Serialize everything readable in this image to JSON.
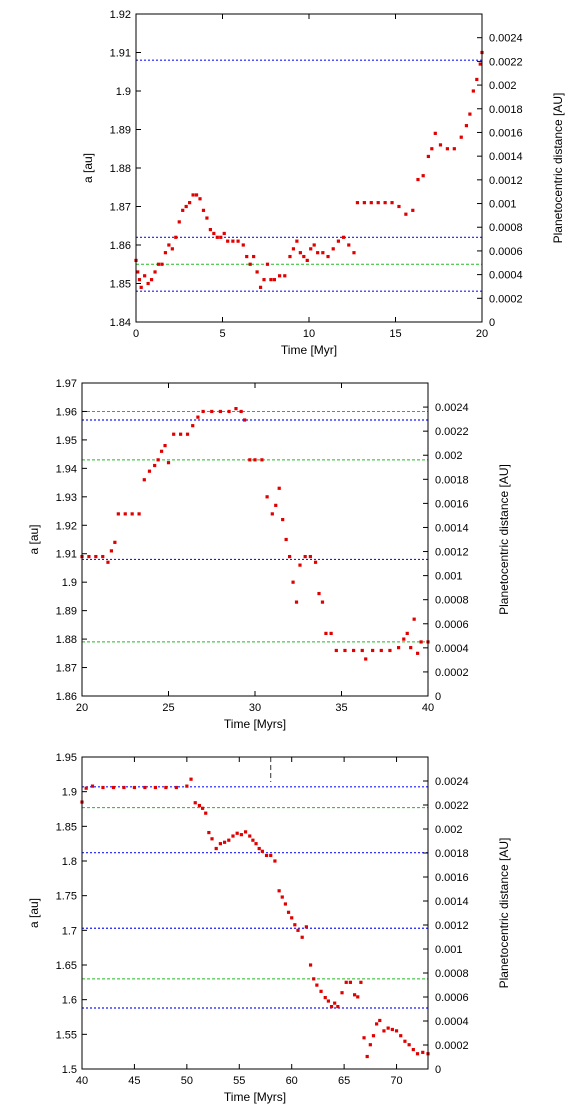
{
  "chart_data": [
    {
      "type": "scatter",
      "xlabel": "Time [Myr]",
      "ylabel": "a [au]",
      "y2label": "Planetocentric distance [AU]",
      "xlim": [
        0,
        20
      ],
      "ylim": [
        1.84,
        1.92
      ],
      "y2lim": [
        0,
        0.0026
      ],
      "xticks": [
        "0",
        "5",
        "10",
        "15",
        "20"
      ],
      "yticks": [
        "1.84",
        "1.85",
        "1.86",
        "1.87",
        "1.88",
        "1.89",
        "1.9",
        "1.91",
        "1.92"
      ],
      "y2ticks": [
        "0",
        "0.0002",
        "0.0004",
        "0.0006",
        "0.0008",
        "0.001",
        "0.0012",
        "0.0014",
        "0.0016",
        "0.0018",
        "0.002",
        "0.0022",
        "0.0024"
      ],
      "hlines_blue": [
        1.908,
        1.862,
        1.848
      ],
      "hlines_green": [
        1.855
      ],
      "points": [
        [
          0.0,
          1.856
        ],
        [
          0.1,
          1.853
        ],
        [
          0.2,
          1.851
        ],
        [
          0.3,
          1.849
        ],
        [
          0.5,
          1.852
        ],
        [
          0.7,
          1.85
        ],
        [
          0.9,
          1.851
        ],
        [
          1.1,
          1.853
        ],
        [
          1.3,
          1.855
        ],
        [
          1.5,
          1.855
        ],
        [
          1.7,
          1.858
        ],
        [
          1.9,
          1.86
        ],
        [
          2.1,
          1.859
        ],
        [
          2.3,
          1.862
        ],
        [
          2.5,
          1.866
        ],
        [
          2.7,
          1.869
        ],
        [
          2.9,
          1.87
        ],
        [
          3.1,
          1.871
        ],
        [
          3.3,
          1.873
        ],
        [
          3.5,
          1.873
        ],
        [
          3.7,
          1.872
        ],
        [
          3.9,
          1.869
        ],
        [
          4.1,
          1.867
        ],
        [
          4.3,
          1.864
        ],
        [
          4.5,
          1.863
        ],
        [
          4.7,
          1.862
        ],
        [
          4.9,
          1.862
        ],
        [
          5.1,
          1.863
        ],
        [
          5.3,
          1.861
        ],
        [
          5.6,
          1.861
        ],
        [
          5.9,
          1.861
        ],
        [
          6.2,
          1.86
        ],
        [
          6.4,
          1.857
        ],
        [
          6.6,
          1.855
        ],
        [
          6.8,
          1.857
        ],
        [
          7.0,
          1.853
        ],
        [
          7.2,
          1.849
        ],
        [
          7.4,
          1.851
        ],
        [
          7.6,
          1.855
        ],
        [
          7.8,
          1.851
        ],
        [
          8.0,
          1.851
        ],
        [
          8.3,
          1.852
        ],
        [
          8.6,
          1.852
        ],
        [
          8.9,
          1.857
        ],
        [
          9.1,
          1.859
        ],
        [
          9.3,
          1.861
        ],
        [
          9.5,
          1.858
        ],
        [
          9.7,
          1.857
        ],
        [
          9.9,
          1.856
        ],
        [
          10.1,
          1.859
        ],
        [
          10.3,
          1.86
        ],
        [
          10.5,
          1.858
        ],
        [
          10.8,
          1.858
        ],
        [
          11.1,
          1.857
        ],
        [
          11.4,
          1.859
        ],
        [
          11.7,
          1.861
        ],
        [
          12.0,
          1.862
        ],
        [
          12.3,
          1.86
        ],
        [
          12.6,
          1.858
        ],
        [
          12.8,
          1.871
        ],
        [
          13.2,
          1.871
        ],
        [
          13.6,
          1.871
        ],
        [
          14.0,
          1.871
        ],
        [
          14.4,
          1.871
        ],
        [
          14.8,
          1.871
        ],
        [
          15.2,
          1.87
        ],
        [
          15.6,
          1.868
        ],
        [
          16.0,
          1.869
        ],
        [
          16.3,
          1.877
        ],
        [
          16.6,
          1.878
        ],
        [
          16.9,
          1.883
        ],
        [
          17.1,
          1.885
        ],
        [
          17.3,
          1.889
        ],
        [
          17.6,
          1.886
        ],
        [
          18.0,
          1.885
        ],
        [
          18.4,
          1.885
        ],
        [
          18.8,
          1.888
        ],
        [
          19.1,
          1.891
        ],
        [
          19.3,
          1.894
        ],
        [
          19.5,
          1.9
        ],
        [
          19.7,
          1.903
        ],
        [
          19.9,
          1.907
        ],
        [
          20.0,
          1.91
        ]
      ]
    },
    {
      "type": "scatter",
      "xlabel": "Time [Myrs]",
      "ylabel": "a [au]",
      "y2label": "Planetocentric distance [AU]",
      "xlim": [
        20,
        40
      ],
      "ylim": [
        1.86,
        1.97
      ],
      "y2lim": [
        0,
        0.0026
      ],
      "xticks": [
        "20",
        "25",
        "30",
        "35",
        "40"
      ],
      "yticks": [
        "1.86",
        "1.87",
        "1.88",
        "1.89",
        "1.9",
        "1.91",
        "1.92",
        "1.93",
        "1.94",
        "1.95",
        "1.96",
        "1.97"
      ],
      "y2ticks": [
        "0",
        "0.0002",
        "0.0004",
        "0.0006",
        "0.0008",
        "0.001",
        "0.0012",
        "0.0014",
        "0.0016",
        "0.0018",
        "0.002",
        "0.0022",
        "0.0024"
      ],
      "hlines_blue": [
        1.957,
        1.908
      ],
      "hlines_green": [
        1.96,
        1.943,
        1.879
      ],
      "points": [
        [
          20.0,
          1.909
        ],
        [
          20.4,
          1.909
        ],
        [
          20.8,
          1.909
        ],
        [
          21.2,
          1.909
        ],
        [
          21.5,
          1.907
        ],
        [
          21.7,
          1.911
        ],
        [
          21.9,
          1.914
        ],
        [
          22.1,
          1.924
        ],
        [
          22.5,
          1.924
        ],
        [
          22.9,
          1.924
        ],
        [
          23.3,
          1.924
        ],
        [
          23.6,
          1.936
        ],
        [
          23.9,
          1.939
        ],
        [
          24.2,
          1.941
        ],
        [
          24.4,
          1.943
        ],
        [
          24.6,
          1.946
        ],
        [
          24.8,
          1.948
        ],
        [
          25.0,
          1.942
        ],
        [
          25.3,
          1.952
        ],
        [
          25.7,
          1.952
        ],
        [
          26.1,
          1.952
        ],
        [
          26.4,
          1.955
        ],
        [
          26.7,
          1.958
        ],
        [
          27.0,
          1.96
        ],
        [
          27.5,
          1.96
        ],
        [
          28.0,
          1.96
        ],
        [
          28.5,
          1.96
        ],
        [
          28.9,
          1.961
        ],
        [
          29.2,
          1.96
        ],
        [
          29.4,
          1.957
        ],
        [
          29.7,
          1.943
        ],
        [
          30.0,
          1.943
        ],
        [
          30.4,
          1.943
        ],
        [
          30.7,
          1.93
        ],
        [
          31.0,
          1.924
        ],
        [
          31.2,
          1.927
        ],
        [
          31.4,
          1.933
        ],
        [
          31.6,
          1.922
        ],
        [
          31.8,
          1.915
        ],
        [
          32.0,
          1.909
        ],
        [
          32.2,
          1.9
        ],
        [
          32.4,
          1.893
        ],
        [
          32.6,
          1.906
        ],
        [
          32.9,
          1.909
        ],
        [
          33.2,
          1.909
        ],
        [
          33.5,
          1.907
        ],
        [
          33.7,
          1.896
        ],
        [
          33.9,
          1.893
        ],
        [
          34.1,
          1.882
        ],
        [
          34.4,
          1.882
        ],
        [
          34.7,
          1.876
        ],
        [
          35.2,
          1.876
        ],
        [
          35.7,
          1.876
        ],
        [
          36.2,
          1.876
        ],
        [
          36.4,
          1.873
        ],
        [
          36.8,
          1.876
        ],
        [
          37.3,
          1.876
        ],
        [
          37.8,
          1.876
        ],
        [
          38.3,
          1.877
        ],
        [
          38.6,
          1.88
        ],
        [
          38.8,
          1.882
        ],
        [
          39.0,
          1.877
        ],
        [
          39.2,
          1.887
        ],
        [
          39.4,
          1.875
        ],
        [
          39.6,
          1.879
        ],
        [
          40.0,
          1.879
        ]
      ]
    },
    {
      "type": "scatter",
      "xlabel": "Time [Myrs]",
      "ylabel": "a [au]",
      "y2label": "Planetocentric distance [AU]",
      "xlim": [
        40,
        73
      ],
      "ylim": [
        1.5,
        1.95
      ],
      "y2lim": [
        0,
        0.0026
      ],
      "xticks": [
        "40",
        "45",
        "50",
        "55",
        "60",
        "65",
        "70"
      ],
      "yticks": [
        "1.5",
        "1.55",
        "1.6",
        "1.65",
        "1.7",
        "1.75",
        "1.8",
        "1.85",
        "1.9",
        "1.95"
      ],
      "y2ticks": [
        "0",
        "0.0002",
        "0.0004",
        "0.0006",
        "0.0008",
        "0.001",
        "0.0012",
        "0.0014",
        "0.0016",
        "0.0018",
        "0.002",
        "0.0022",
        "0.0024"
      ],
      "hlines_blue": [
        1.907,
        1.812,
        1.703,
        1.588
      ],
      "hlines_green": [
        1.877,
        1.63
      ],
      "vline_dashed": 58,
      "points": [
        [
          40.0,
          1.885
        ],
        [
          40.4,
          1.905
        ],
        [
          41.0,
          1.908
        ],
        [
          42.0,
          1.906
        ],
        [
          43.0,
          1.906
        ],
        [
          44.0,
          1.906
        ],
        [
          45.0,
          1.906
        ],
        [
          46.0,
          1.906
        ],
        [
          47.0,
          1.906
        ],
        [
          48.0,
          1.906
        ],
        [
          49.0,
          1.906
        ],
        [
          50.0,
          1.908
        ],
        [
          50.4,
          1.918
        ],
        [
          50.8,
          1.884
        ],
        [
          51.2,
          1.88
        ],
        [
          51.5,
          1.876
        ],
        [
          51.8,
          1.869
        ],
        [
          52.1,
          1.841
        ],
        [
          52.4,
          1.832
        ],
        [
          52.8,
          1.818
        ],
        [
          53.2,
          1.825
        ],
        [
          53.6,
          1.827
        ],
        [
          54.0,
          1.83
        ],
        [
          54.4,
          1.836
        ],
        [
          54.8,
          1.84
        ],
        [
          55.2,
          1.838
        ],
        [
          55.6,
          1.842
        ],
        [
          56.0,
          1.836
        ],
        [
          56.3,
          1.83
        ],
        [
          56.6,
          1.825
        ],
        [
          56.9,
          1.818
        ],
        [
          57.2,
          1.814
        ],
        [
          57.6,
          1.808
        ],
        [
          58.0,
          1.808
        ],
        [
          58.4,
          1.8
        ],
        [
          58.8,
          1.757
        ],
        [
          59.1,
          1.748
        ],
        [
          59.4,
          1.738
        ],
        [
          59.7,
          1.726
        ],
        [
          60.0,
          1.718
        ],
        [
          60.3,
          1.708
        ],
        [
          60.6,
          1.7
        ],
        [
          61.0,
          1.69
        ],
        [
          61.4,
          1.705
        ],
        [
          61.8,
          1.65
        ],
        [
          62.1,
          1.63
        ],
        [
          62.4,
          1.621
        ],
        [
          62.8,
          1.612
        ],
        [
          63.2,
          1.603
        ],
        [
          63.5,
          1.598
        ],
        [
          63.8,
          1.59
        ],
        [
          64.1,
          1.595
        ],
        [
          64.4,
          1.59
        ],
        [
          64.8,
          1.61
        ],
        [
          65.2,
          1.625
        ],
        [
          65.6,
          1.625
        ],
        [
          66.0,
          1.607
        ],
        [
          66.3,
          1.604
        ],
        [
          66.6,
          1.625
        ],
        [
          66.9,
          1.545
        ],
        [
          67.2,
          1.518
        ],
        [
          67.5,
          1.535
        ],
        [
          67.8,
          1.548
        ],
        [
          68.1,
          1.565
        ],
        [
          68.4,
          1.57
        ],
        [
          68.8,
          1.555
        ],
        [
          69.2,
          1.559
        ],
        [
          69.6,
          1.557
        ],
        [
          70.0,
          1.555
        ],
        [
          70.4,
          1.548
        ],
        [
          70.8,
          1.54
        ],
        [
          71.2,
          1.535
        ],
        [
          71.6,
          1.528
        ],
        [
          72.0,
          1.522
        ],
        [
          72.5,
          1.524
        ],
        [
          73.0,
          1.522
        ]
      ]
    }
  ]
}
